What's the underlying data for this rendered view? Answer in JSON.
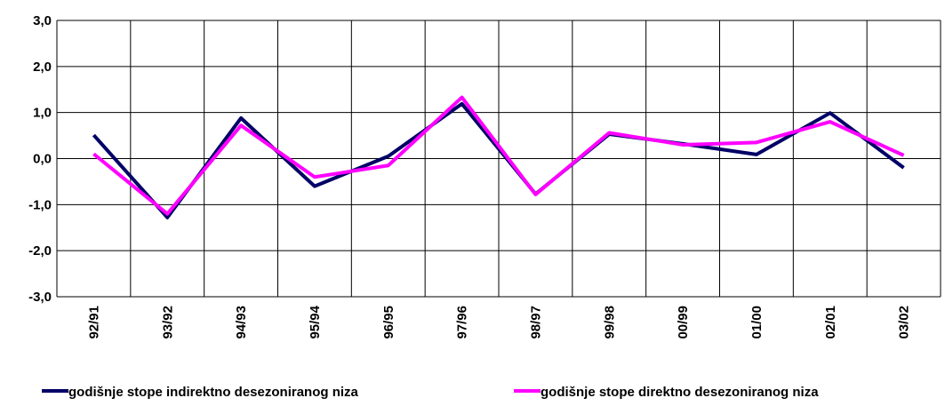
{
  "chart_data": {
    "type": "line",
    "categories": [
      "92/91",
      "93/92",
      "94/93",
      "95/94",
      "96/95",
      "97/96",
      "98/97",
      "99/98",
      "00/99",
      "01/00",
      "02/01",
      "03/02"
    ],
    "series": [
      {
        "name": "godišnje stope indirektno desezoniranog niza",
        "color": "#000066",
        "values": [
          0.51,
          -1.28,
          0.88,
          -0.6,
          0.05,
          1.19,
          -0.77,
          0.53,
          0.32,
          0.09,
          0.99,
          -0.2
        ]
      },
      {
        "name": "godišnje stope direktno desezoniranog niza",
        "color": "#ff00ff",
        "values": [
          0.1,
          -1.2,
          0.72,
          -0.4,
          -0.15,
          1.33,
          -0.78,
          0.56,
          0.3,
          0.35,
          0.8,
          0.07
        ]
      }
    ],
    "ylim": [
      -3,
      3
    ],
    "yticks": [
      {
        "value": -3,
        "label": "-3,0"
      },
      {
        "value": -2,
        "label": "-2,0"
      },
      {
        "value": -1,
        "label": "-1,0"
      },
      {
        "value": 0,
        "label": "0,0"
      },
      {
        "value": 1,
        "label": "1,0"
      },
      {
        "value": 2,
        "label": "2,0"
      },
      {
        "value": 3,
        "label": "3,0"
      }
    ],
    "grid": true,
    "legend": "bottom"
  }
}
